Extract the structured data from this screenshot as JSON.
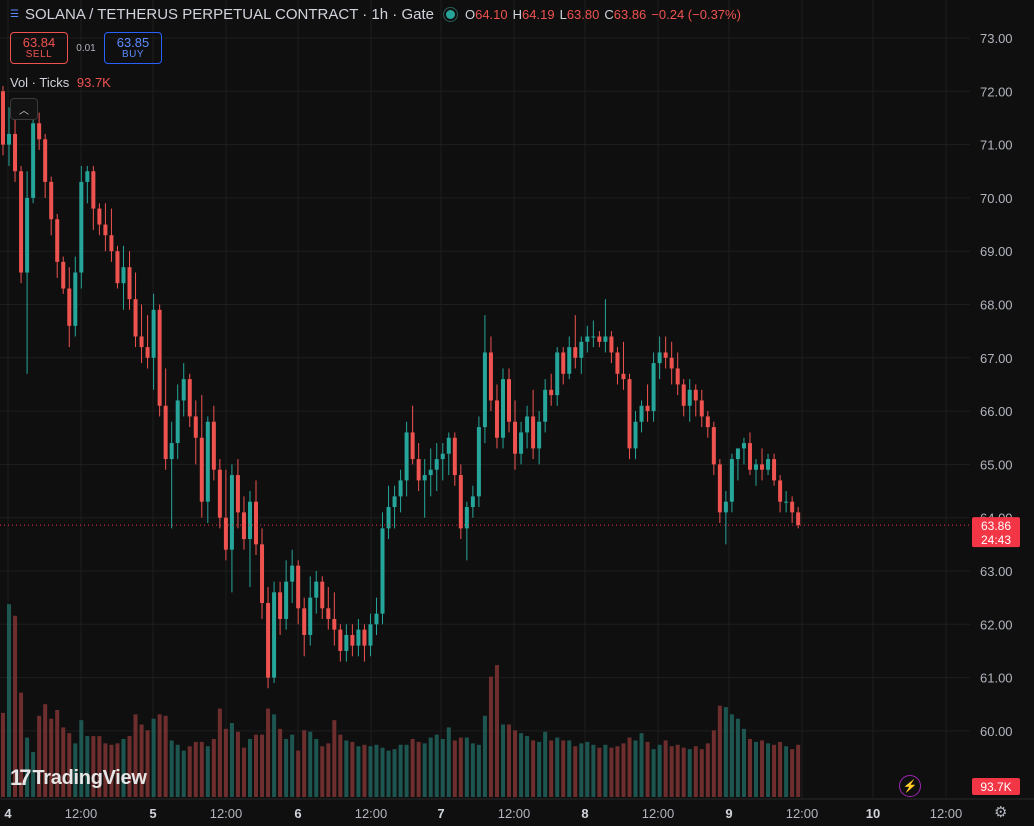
{
  "header": {
    "symbol_icon": "menu-lines-icon",
    "title": "SOLANA / TETHERUS PERPETUAL CONTRACT · 1h · Gate",
    "status_color": "#26a69a",
    "open_label": "O",
    "open": "64.10",
    "high_label": "H",
    "high": "64.19",
    "low_label": "L",
    "low": "63.80",
    "close_label": "C",
    "close": "63.86",
    "change": "−0.24 (−0.37%)"
  },
  "trade": {
    "sell_price": "63.84",
    "sell_label": "SELL",
    "spread": "0.01",
    "buy_price": "63.85",
    "buy_label": "BUY"
  },
  "volume_legend": {
    "label": "Vol · Ticks",
    "value": "93.7K"
  },
  "collapse_icon": "chevron-up-icon",
  "price_badge": {
    "price": "63.86",
    "countdown": "24:43",
    "color": "#f23645"
  },
  "volume_badge": "93.7K",
  "logo_text": "TradingView",
  "colors": {
    "up": "#26a69a",
    "down": "#ef5350",
    "background": "#0f0f0f",
    "grid": "#1e1e1e"
  },
  "chart_data": {
    "type": "candlestick",
    "title": "",
    "xlabel": "",
    "ylabel": "",
    "ylim": [
      59.5,
      73.3
    ],
    "y_ticks": [
      "73.00",
      "72.00",
      "71.00",
      "70.00",
      "69.00",
      "68.00",
      "67.00",
      "66.00",
      "65.00",
      "64.00",
      "63.00",
      "62.00",
      "61.00",
      "60.00"
    ],
    "x_ticks": [
      "4",
      "12:00",
      "5",
      "12:00",
      "6",
      "12:00",
      "7",
      "12:00",
      "8",
      "12:00",
      "9",
      "12:00",
      "10",
      "12:00"
    ],
    "grid": true,
    "last_price": 63.86,
    "candles_ohlc": [
      [
        72.0,
        72.1,
        70.8,
        71.0
      ],
      [
        71.0,
        71.7,
        70.6,
        71.2
      ],
      [
        71.2,
        71.7,
        70.3,
        70.5
      ],
      [
        70.5,
        70.6,
        68.4,
        68.6
      ],
      [
        68.6,
        70.5,
        66.7,
        70.0
      ],
      [
        70.0,
        71.6,
        69.9,
        71.4
      ],
      [
        71.4,
        71.6,
        70.9,
        71.1
      ],
      [
        71.1,
        71.2,
        70.0,
        70.3
      ],
      [
        70.3,
        70.4,
        69.3,
        69.6
      ],
      [
        69.6,
        69.7,
        68.5,
        68.8
      ],
      [
        68.8,
        68.9,
        68.2,
        68.3
      ],
      [
        68.3,
        68.7,
        67.2,
        67.6
      ],
      [
        67.6,
        68.9,
        67.4,
        68.6
      ],
      [
        68.6,
        70.6,
        68.3,
        70.3
      ],
      [
        70.3,
        70.6,
        69.9,
        70.5
      ],
      [
        70.5,
        70.6,
        69.4,
        69.8
      ],
      [
        69.8,
        69.9,
        69.3,
        69.5
      ],
      [
        69.5,
        69.9,
        69.0,
        69.3
      ],
      [
        69.3,
        69.8,
        68.8,
        69.0
      ],
      [
        69.0,
        69.1,
        68.3,
        68.4
      ],
      [
        68.4,
        69.1,
        67.9,
        68.7
      ],
      [
        68.7,
        69.0,
        67.9,
        68.1
      ],
      [
        68.1,
        68.6,
        67.2,
        67.4
      ],
      [
        67.4,
        68.0,
        66.9,
        67.2
      ],
      [
        67.2,
        67.8,
        66.8,
        67.0
      ],
      [
        67.0,
        68.2,
        66.4,
        67.9
      ],
      [
        67.9,
        68.0,
        65.9,
        66.1
      ],
      [
        66.1,
        66.8,
        64.9,
        65.1
      ],
      [
        65.1,
        65.8,
        63.8,
        65.4
      ],
      [
        65.4,
        66.5,
        65.1,
        66.2
      ],
      [
        66.2,
        66.9,
        65.9,
        66.6
      ],
      [
        66.6,
        66.7,
        65.7,
        65.9
      ],
      [
        65.9,
        66.2,
        65.0,
        65.5
      ],
      [
        65.5,
        66.3,
        64.0,
        64.3
      ],
      [
        64.3,
        65.9,
        63.9,
        65.8
      ],
      [
        65.8,
        66.1,
        64.7,
        64.9
      ],
      [
        64.9,
        65.1,
        63.8,
        64.0
      ],
      [
        64.0,
        64.9,
        63.2,
        63.4
      ],
      [
        63.4,
        65.0,
        62.6,
        64.8
      ],
      [
        64.8,
        65.1,
        63.8,
        64.1
      ],
      [
        64.1,
        64.4,
        63.4,
        63.6
      ],
      [
        63.6,
        64.5,
        62.7,
        64.3
      ],
      [
        64.3,
        64.7,
        63.3,
        63.5
      ],
      [
        63.5,
        63.8,
        62.1,
        62.4
      ],
      [
        62.4,
        62.7,
        60.8,
        61.0
      ],
      [
        61.0,
        62.8,
        60.9,
        62.6
      ],
      [
        62.6,
        62.8,
        61.8,
        62.1
      ],
      [
        62.1,
        63.2,
        61.9,
        62.8
      ],
      [
        62.8,
        63.4,
        62.4,
        63.1
      ],
      [
        63.1,
        63.2,
        62.0,
        62.3
      ],
      [
        62.3,
        62.5,
        61.4,
        61.8
      ],
      [
        61.8,
        62.9,
        61.6,
        62.5
      ],
      [
        62.5,
        63.0,
        62.2,
        62.8
      ],
      [
        62.8,
        62.9,
        62.1,
        62.3
      ],
      [
        62.3,
        62.7,
        61.9,
        62.1
      ],
      [
        62.1,
        62.6,
        61.6,
        61.9
      ],
      [
        61.9,
        62.0,
        61.3,
        61.5
      ],
      [
        61.5,
        62.0,
        61.3,
        61.8
      ],
      [
        61.8,
        62.0,
        61.4,
        61.6
      ],
      [
        61.6,
        62.1,
        61.4,
        61.9
      ],
      [
        61.9,
        62.0,
        61.3,
        61.6
      ],
      [
        61.6,
        62.2,
        61.4,
        62.0
      ],
      [
        62.0,
        62.5,
        61.8,
        62.2
      ],
      [
        62.2,
        64.1,
        62.0,
        63.8
      ],
      [
        63.8,
        64.6,
        63.6,
        64.2
      ],
      [
        64.2,
        64.6,
        63.8,
        64.4
      ],
      [
        64.4,
        64.9,
        64.1,
        64.7
      ],
      [
        64.7,
        65.8,
        64.4,
        65.6
      ],
      [
        65.6,
        66.1,
        65.0,
        65.1
      ],
      [
        65.1,
        65.4,
        64.5,
        64.7
      ],
      [
        64.7,
        65.1,
        64.0,
        64.8
      ],
      [
        64.8,
        65.3,
        64.4,
        64.9
      ],
      [
        64.9,
        65.4,
        64.5,
        65.1
      ],
      [
        65.1,
        65.4,
        64.7,
        65.2
      ],
      [
        65.2,
        65.6,
        64.8,
        65.5
      ],
      [
        65.5,
        65.6,
        64.6,
        64.8
      ],
      [
        64.8,
        65.0,
        63.6,
        63.8
      ],
      [
        63.8,
        64.3,
        63.2,
        64.2
      ],
      [
        64.2,
        64.6,
        64.0,
        64.4
      ],
      [
        64.4,
        65.9,
        64.2,
        65.7
      ],
      [
        65.7,
        67.8,
        65.4,
        67.1
      ],
      [
        67.1,
        67.4,
        66.0,
        66.2
      ],
      [
        66.2,
        66.5,
        65.3,
        65.5
      ],
      [
        65.5,
        66.8,
        65.3,
        66.6
      ],
      [
        66.6,
        66.8,
        65.6,
        65.8
      ],
      [
        65.8,
        66.2,
        64.9,
        65.2
      ],
      [
        65.2,
        65.8,
        65.0,
        65.6
      ],
      [
        65.6,
        66.1,
        65.3,
        65.9
      ],
      [
        65.9,
        66.4,
        65.1,
        65.3
      ],
      [
        65.3,
        66.0,
        65.0,
        65.8
      ],
      [
        65.8,
        66.6,
        65.6,
        66.4
      ],
      [
        66.4,
        66.7,
        66.1,
        66.3
      ],
      [
        66.3,
        67.2,
        66.1,
        67.1
      ],
      [
        67.1,
        67.2,
        66.5,
        66.7
      ],
      [
        66.7,
        67.4,
        66.6,
        67.2
      ],
      [
        67.2,
        67.8,
        66.8,
        67.0
      ],
      [
        67.0,
        67.4,
        66.7,
        67.3
      ],
      [
        67.3,
        67.6,
        67.1,
        67.4
      ],
      [
        67.4,
        67.7,
        67.2,
        67.4
      ],
      [
        67.4,
        67.5,
        67.2,
        67.3
      ],
      [
        67.3,
        68.1,
        67.1,
        67.4
      ],
      [
        67.4,
        67.5,
        66.9,
        67.1
      ],
      [
        67.1,
        67.2,
        66.5,
        66.7
      ],
      [
        66.7,
        67.3,
        66.4,
        66.6
      ],
      [
        66.6,
        66.7,
        65.1,
        65.3
      ],
      [
        65.3,
        66.0,
        65.1,
        65.8
      ],
      [
        65.8,
        66.2,
        65.6,
        66.1
      ],
      [
        66.1,
        66.5,
        65.8,
        66.0
      ],
      [
        66.0,
        67.1,
        65.8,
        66.9
      ],
      [
        66.9,
        67.4,
        66.6,
        67.1
      ],
      [
        67.1,
        67.4,
        66.8,
        67.0
      ],
      [
        67.0,
        67.3,
        66.5,
        66.8
      ],
      [
        66.8,
        67.1,
        66.3,
        66.5
      ],
      [
        66.5,
        66.6,
        65.9,
        66.1
      ],
      [
        66.1,
        66.6,
        65.8,
        66.4
      ],
      [
        66.4,
        66.5,
        65.9,
        66.2
      ],
      [
        66.2,
        66.4,
        65.7,
        65.9
      ],
      [
        65.9,
        66.0,
        65.5,
        65.7
      ],
      [
        65.7,
        65.8,
        64.8,
        65.0
      ],
      [
        65.0,
        65.1,
        63.9,
        64.1
      ],
      [
        64.1,
        64.5,
        63.5,
        64.3
      ],
      [
        64.3,
        65.2,
        64.1,
        65.1
      ],
      [
        65.1,
        65.3,
        64.7,
        65.3
      ],
      [
        65.3,
        65.5,
        65.0,
        65.4
      ],
      [
        65.4,
        65.6,
        64.8,
        64.9
      ],
      [
        64.9,
        65.1,
        64.6,
        65.0
      ],
      [
        65.0,
        65.3,
        64.7,
        64.9
      ],
      [
        64.9,
        65.2,
        64.8,
        65.1
      ],
      [
        65.1,
        65.2,
        64.6,
        64.7
      ],
      [
        64.7,
        64.8,
        64.1,
        64.3
      ],
      [
        64.3,
        64.5,
        64.1,
        64.3
      ],
      [
        64.3,
        64.4,
        63.9,
        64.1
      ],
      [
        64.1,
        64.2,
        63.8,
        63.86
      ]
    ],
    "volume_ticks": [
      5.8,
      13.3,
      12.5,
      7.2,
      4.1,
      3.1,
      5.6,
      6.4,
      5.4,
      6.0,
      4.8,
      4.4,
      3.7,
      5.3,
      4.2,
      4.2,
      4.2,
      3.7,
      3.6,
      3.7,
      4.0,
      4.2,
      5.7,
      5.0,
      4.6,
      5.4,
      5.7,
      5.6,
      3.9,
      3.6,
      3.2,
      3.5,
      3.8,
      3.8,
      3.5,
      4.0,
      6.1,
      4.7,
      5.1,
      4.5,
      3.4,
      4.0,
      4.3,
      4.3,
      6.1,
      5.7,
      4.7,
      4.0,
      4.3,
      3.2,
      4.6,
      4.5,
      4.0,
      3.5,
      3.7,
      5.3,
      4.3,
      3.9,
      3.8,
      3.5,
      3.6,
      3.5,
      3.6,
      3.4,
      3.2,
      3.3,
      3.6,
      3.6,
      4.0,
      3.8,
      3.7,
      4.1,
      4.3,
      4.0,
      4.8,
      3.9,
      4.1,
      4.1,
      3.7,
      3.6,
      5.6,
      8.3,
      9.1,
      5.0,
      5.0,
      4.6,
      4.4,
      4.2,
      3.9,
      3.8,
      4.5,
      3.9,
      4.1,
      3.9,
      3.9,
      3.5,
      3.7,
      3.8,
      3.6,
      3.4,
      3.6,
      3.4,
      3.5,
      3.7,
      4.1,
      3.9,
      4.4,
      3.8,
      3.3,
      3.6,
      3.9,
      3.5,
      3.6,
      3.4,
      3.3,
      3.5,
      3.3,
      3.7,
      4.6,
      6.3,
      6.2,
      5.7,
      5.4,
      4.7,
      4.0,
      3.8,
      3.9,
      3.7,
      3.6,
      3.8,
      3.5,
      3.3,
      3.6
    ]
  }
}
